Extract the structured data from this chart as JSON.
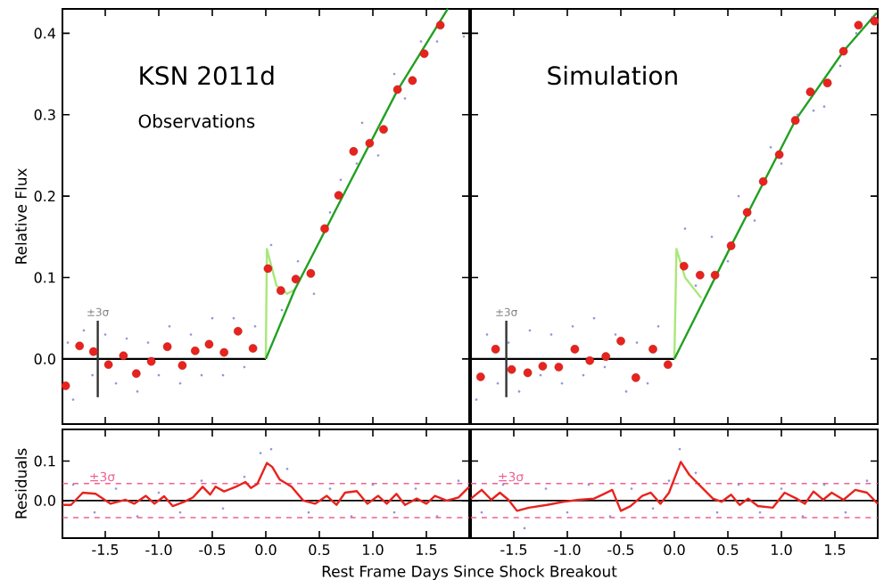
{
  "chart_data": [
    {
      "type": "scatter",
      "title": "KSN 2011d",
      "subtitle": "Observations",
      "ylabel": "Relative Flux",
      "xlim": [
        -1.9,
        1.9
      ],
      "ylim": [
        -0.08,
        0.43
      ],
      "xticks": [
        -1.5,
        -1.0,
        -0.5,
        0.0,
        0.5,
        1.0,
        1.5
      ],
      "yticks": [
        {
          "value": 0.0,
          "label": "0.0"
        },
        {
          "value": 0.1,
          "label": "0.1"
        },
        {
          "value": 0.2,
          "label": "0.2"
        },
        {
          "value": 0.3,
          "label": "0.3"
        },
        {
          "value": 0.4,
          "label": "0.4"
        }
      ],
      "tick_labels": "y",
      "annotations": [
        {
          "text": "±3σ",
          "x": -1.57,
          "y": 0.05
        }
      ],
      "series": [
        {
          "color": "#a0a0f0",
          "marker": "circle",
          "x": [
            -1.85,
            -1.8,
            -1.7,
            -1.62,
            -1.5,
            -1.4,
            -1.3,
            -1.2,
            -1.1,
            -1.0,
            -0.9,
            -0.8,
            -0.7,
            -0.6,
            -0.5,
            -0.4,
            -0.3,
            -0.2,
            -0.1,
            0.05,
            0.15,
            0.3,
            0.45,
            0.6,
            0.7,
            0.85,
            0.9,
            1.05,
            1.2,
            1.3,
            1.45,
            1.6,
            1.85
          ],
          "values": [
            0.02,
            -0.05,
            0.035,
            -0.02,
            0.03,
            -0.03,
            0.025,
            -0.04,
            0.02,
            -0.02,
            0.04,
            -0.03,
            0.03,
            -0.02,
            0.05,
            -0.02,
            0.05,
            -0.01,
            0.04,
            0.14,
            0.06,
            0.12,
            0.08,
            0.18,
            0.22,
            0.24,
            0.29,
            0.25,
            0.35,
            0.32,
            0.39,
            0.39,
            0.396
          ]
        },
        {
          "type": "line",
          "color": "#000000",
          "marker": "none",
          "x": [
            -1.9,
            0.0
          ],
          "values": [
            0.0,
            0.0
          ]
        },
        {
          "type": "line",
          "color": "#a8e878",
          "marker": "none",
          "x": [
            0.0,
            0.01,
            0.1,
            0.2,
            0.27
          ],
          "values": [
            0.0,
            0.135,
            0.09,
            0.08,
            0.085
          ]
        },
        {
          "type": "line",
          "color": "#22a022",
          "marker": "none",
          "x": [
            0.0,
            0.27,
            0.68,
            1.23,
            1.7
          ],
          "values": [
            0.0,
            0.085,
            0.19,
            0.33,
            0.43
          ]
        },
        {
          "color": "#e8231e",
          "marker": "circle",
          "x": [
            -1.87,
            -1.74,
            -1.61,
            -1.47,
            -1.33,
            -1.21,
            -1.07,
            -0.92,
            -0.78,
            -0.66,
            -0.53,
            -0.39,
            -0.26,
            -0.12,
            0.02,
            0.14,
            0.28,
            0.42,
            0.55,
            0.68,
            0.82,
            0.97,
            1.1,
            1.23,
            1.37,
            1.48,
            1.63
          ],
          "values": [
            -0.033,
            0.016,
            0.009,
            -0.007,
            0.004,
            -0.018,
            -0.003,
            0.015,
            -0.008,
            0.01,
            0.018,
            0.008,
            0.034,
            0.013,
            0.111,
            0.084,
            0.098,
            0.105,
            0.16,
            0.201,
            0.255,
            0.265,
            0.282,
            0.331,
            0.342,
            0.375,
            0.41
          ]
        },
        {
          "type": "line",
          "color": "#333333",
          "marker": "none",
          "x": [
            -1.57,
            -1.57
          ],
          "values": [
            -0.047,
            0.047
          ]
        }
      ]
    },
    {
      "type": "scatter",
      "title": "Simulation",
      "xlim": [
        -1.9,
        1.9
      ],
      "ylim": [
        -0.08,
        0.43
      ],
      "xticks": [
        -1.5,
        -1.0,
        -0.5,
        0.0,
        0.5,
        1.0,
        1.5
      ],
      "yticks": [
        0.0,
        0.1,
        0.2,
        0.3,
        0.4
      ],
      "tick_labels": false,
      "annotations": [
        {
          "text": "±3σ",
          "x": -1.57,
          "y": 0.05
        }
      ],
      "series": [
        {
          "color": "#a0a0f0",
          "marker": "circle",
          "x": [
            -1.85,
            -1.75,
            -1.65,
            -1.55,
            -1.45,
            -1.35,
            -1.25,
            -1.15,
            -1.05,
            -0.95,
            -0.85,
            -0.75,
            -0.65,
            -0.55,
            -0.45,
            -0.35,
            -0.25,
            -0.15,
            0.1,
            0.2,
            0.35,
            0.5,
            0.6,
            0.75,
            0.9,
            1.0,
            1.15,
            1.3,
            1.4,
            1.55,
            1.7,
            1.85
          ],
          "values": [
            -0.05,
            0.03,
            -0.03,
            0.02,
            -0.04,
            0.035,
            -0.02,
            0.03,
            -0.03,
            0.04,
            -0.02,
            0.05,
            -0.01,
            0.03,
            -0.04,
            0.02,
            -0.03,
            0.04,
            0.16,
            0.09,
            0.15,
            0.12,
            0.2,
            0.17,
            0.26,
            0.24,
            0.3,
            0.305,
            0.31,
            0.36,
            0.4,
            0.42
          ]
        },
        {
          "type": "line",
          "color": "#000000",
          "marker": "none",
          "x": [
            -1.9,
            0.0
          ],
          "values": [
            0.0,
            0.0
          ]
        },
        {
          "type": "line",
          "color": "#a8e878",
          "marker": "none",
          "x": [
            0.0,
            0.02,
            0.1,
            0.25
          ],
          "values": [
            0.0,
            0.135,
            0.1,
            0.075
          ]
        },
        {
          "type": "line",
          "color": "#22a022",
          "marker": "none",
          "x": [
            0.0,
            0.53,
            1.13,
            1.58,
            1.89
          ],
          "values": [
            0.0,
            0.139,
            0.293,
            0.378,
            0.425
          ]
        },
        {
          "color": "#e8231e",
          "marker": "circle",
          "x": [
            -1.81,
            -1.67,
            -1.52,
            -1.37,
            -1.23,
            -1.08,
            -0.93,
            -0.79,
            -0.64,
            -0.5,
            -0.36,
            -0.2,
            -0.06,
            0.09,
            0.24,
            0.38,
            0.53,
            0.68,
            0.83,
            0.98,
            1.13,
            1.27,
            1.43,
            1.58,
            1.72,
            1.87
          ],
          "values": [
            -0.022,
            0.012,
            -0.013,
            -0.017,
            -0.009,
            -0.01,
            0.012,
            -0.002,
            0.003,
            0.022,
            -0.023,
            0.012,
            -0.007,
            0.114,
            0.103,
            0.103,
            0.139,
            0.18,
            0.218,
            0.251,
            0.293,
            0.328,
            0.339,
            0.378,
            0.41,
            0.415
          ]
        },
        {
          "type": "line",
          "color": "#333333",
          "marker": "none",
          "x": [
            -1.57,
            -1.57
          ],
          "values": [
            -0.047,
            0.047
          ]
        }
      ]
    },
    {
      "type": "line",
      "xlabel": "Rest Frame Days Since Shock Breakout",
      "ylabel": "Residuals",
      "xlim": [
        -1.9,
        1.9
      ],
      "ylim": [
        -0.095,
        0.18
      ],
      "xticks": [
        {
          "value": -1.5,
          "label": "-1.5"
        },
        {
          "value": -1.0,
          "label": "-1.0"
        },
        {
          "value": -0.5,
          "label": "-0.5"
        },
        {
          "value": 0.0,
          "label": "0.0"
        },
        {
          "value": 0.5,
          "label": "0.5"
        },
        {
          "value": 1.0,
          "label": "1.0"
        },
        {
          "value": 1.5,
          "label": "1.5"
        }
      ],
      "yticks": [
        {
          "value": 0.0,
          "label": "0.0"
        },
        {
          "value": 0.1,
          "label": "0.1"
        }
      ],
      "ref_lines": [
        {
          "axis": "y",
          "value": 0.0,
          "color": "#000000",
          "line_style": "solid"
        },
        {
          "axis": "y",
          "value": 0.043,
          "label": "±3σ",
          "color": "#f06090",
          "line_style": "dashed"
        },
        {
          "axis": "y",
          "value": -0.043,
          "color": "#f06090",
          "line_style": "dashed"
        }
      ],
      "series": [
        {
          "type": "scatter",
          "color": "#a0a0f0",
          "marker": "circle",
          "x": [
            -1.8,
            -1.6,
            -1.4,
            -1.2,
            -1.0,
            -0.8,
            -0.6,
            -0.4,
            -0.2,
            -0.05,
            0.05,
            0.2,
            0.4,
            0.6,
            0.8,
            1.0,
            1.2,
            1.4,
            1.6,
            1.8
          ],
          "values": [
            0.04,
            -0.03,
            0.03,
            -0.04,
            0.02,
            -0.03,
            0.05,
            -0.02,
            0.06,
            0.12,
            0.13,
            0.08,
            -0.03,
            0.03,
            -0.04,
            0.04,
            -0.03,
            0.03,
            -0.04,
            0.05
          ]
        },
        {
          "color": "#e8231e",
          "x": [
            -1.9,
            -1.82,
            -1.71,
            -1.59,
            -1.45,
            -1.31,
            -1.23,
            -1.12,
            -1.04,
            -0.95,
            -0.87,
            -0.76,
            -0.68,
            -0.59,
            -0.52,
            -0.47,
            -0.39,
            -0.28,
            -0.19,
            -0.14,
            -0.08,
            0.01,
            0.06,
            0.13,
            0.24,
            0.35,
            0.46,
            0.57,
            0.66,
            0.74,
            0.85,
            0.95,
            1.05,
            1.13,
            1.22,
            1.3,
            1.41,
            1.5,
            1.58,
            1.69,
            1.8,
            1.9
          ],
          "values": [
            -0.011,
            -0.011,
            0.02,
            0.017,
            -0.008,
            0.002,
            -0.008,
            0.012,
            -0.008,
            0.011,
            -0.014,
            -0.003,
            0.008,
            0.035,
            0.015,
            0.035,
            0.023,
            0.035,
            0.047,
            0.032,
            0.042,
            0.095,
            0.085,
            0.053,
            0.035,
            0.0,
            -0.008,
            0.012,
            -0.011,
            0.02,
            0.024,
            -0.008,
            0.012,
            -0.008,
            0.017,
            -0.011,
            0.005,
            -0.008,
            0.012,
            0.0,
            0.008,
            0.035
          ]
        }
      ]
    },
    {
      "type": "line",
      "xlim": [
        -1.9,
        1.9
      ],
      "ylim": [
        -0.095,
        0.18
      ],
      "xticks": [
        {
          "value": -1.5,
          "label": "-1.5"
        },
        {
          "value": -1.0,
          "label": "-1.0"
        },
        {
          "value": -0.5,
          "label": "-0.5"
        },
        {
          "value": 0.0,
          "label": "0.0"
        },
        {
          "value": 0.5,
          "label": "0.5"
        },
        {
          "value": 1.0,
          "label": "1.0"
        },
        {
          "value": 1.5,
          "label": "1.5"
        }
      ],
      "yticks": [
        0.0,
        0.1
      ],
      "tick_labels": "x",
      "ref_lines": [
        {
          "axis": "y",
          "value": 0.0,
          "color": "#000000",
          "line_style": "solid"
        },
        {
          "axis": "y",
          "value": 0.043,
          "label": "±3σ",
          "color": "#f06090",
          "line_style": "dashed"
        },
        {
          "axis": "y",
          "value": -0.043,
          "color": "#f06090",
          "line_style": "dashed"
        }
      ],
      "series": [
        {
          "type": "scatter",
          "color": "#a0a0f0",
          "marker": "circle",
          "x": [
            -1.8,
            -1.6,
            -1.4,
            -1.2,
            -1.0,
            -0.8,
            -0.6,
            -0.4,
            -0.2,
            -0.05,
            0.05,
            0.2,
            0.4,
            0.6,
            0.8,
            1.0,
            1.2,
            1.4,
            1.6,
            1.8
          ],
          "values": [
            -0.03,
            0.04,
            -0.07,
            0.03,
            -0.03,
            0.04,
            -0.04,
            0.03,
            -0.02,
            0.05,
            0.13,
            0.07,
            -0.03,
            0.04,
            -0.03,
            0.03,
            -0.04,
            0.04,
            -0.03,
            0.05
          ]
        },
        {
          "color": "#e8231e",
          "x": [
            -1.9,
            -1.8,
            -1.71,
            -1.63,
            -1.55,
            -1.47,
            -1.36,
            -1.19,
            -1.03,
            -0.89,
            -0.75,
            -0.67,
            -0.58,
            -0.5,
            -0.41,
            -0.3,
            -0.22,
            -0.13,
            -0.05,
            0.06,
            0.14,
            0.25,
            0.36,
            0.44,
            0.53,
            0.61,
            0.69,
            0.78,
            0.92,
            1.03,
            1.14,
            1.22,
            1.3,
            1.39,
            1.47,
            1.58,
            1.69,
            1.8,
            1.9
          ],
          "values": [
            0.005,
            0.027,
            0.002,
            0.02,
            0.002,
            -0.026,
            -0.018,
            -0.011,
            -0.003,
            0.002,
            0.005,
            0.015,
            0.027,
            -0.026,
            -0.014,
            0.012,
            0.02,
            -0.008,
            0.02,
            0.098,
            0.065,
            0.035,
            0.005,
            -0.003,
            0.015,
            -0.011,
            0.005,
            -0.014,
            -0.018,
            0.02,
            0.005,
            -0.008,
            0.023,
            0.002,
            0.02,
            0.002,
            0.027,
            0.02,
            -0.008
          ]
        }
      ]
    }
  ]
}
